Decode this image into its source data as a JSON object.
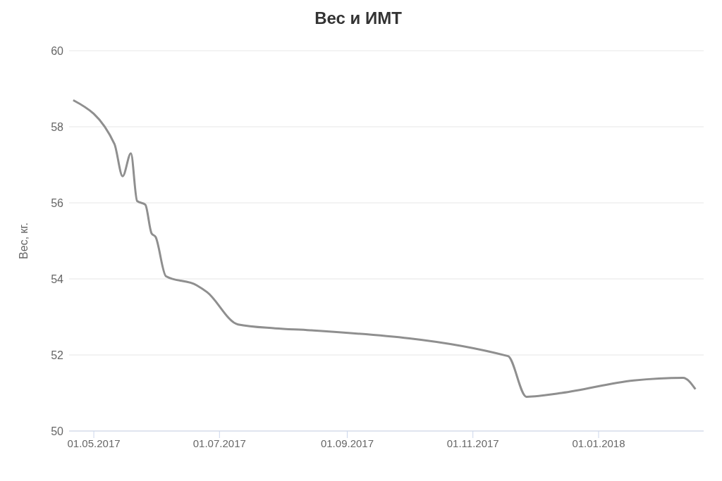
{
  "chart_data": {
    "type": "line",
    "title": "Вес и ИМТ",
    "ylabel": "Вес, кг.",
    "x": [
      "2017-04-21",
      "2017-05-11",
      "2017-05-15",
      "2017-05-19",
      "2017-05-22",
      "2017-05-26",
      "2017-05-29",
      "2017-05-31",
      "2017-06-05",
      "2017-06-20",
      "2017-06-25",
      "2017-07-10",
      "2017-07-28",
      "2017-08-14",
      "2017-11-18",
      "2017-11-27",
      "2017-12-14",
      "2018-01-18",
      "2018-02-11",
      "2018-02-17"
    ],
    "series": [
      {
        "color": "#8f8f8f",
        "values": [
          58.7,
          57.55,
          56.7,
          57.3,
          56.05,
          55.95,
          55.2,
          55.1,
          54.07,
          53.83,
          53.65,
          52.8,
          52.7,
          52.65,
          51.97,
          50.9,
          51.0,
          51.33,
          51.4,
          51.1
        ]
      }
    ],
    "xlim": [
      "2017-04-19",
      "2018-02-21"
    ],
    "xticks": [
      {
        "value": "2017-05-01",
        "label": "01.05.2017"
      },
      {
        "value": "2017-07-01",
        "label": "01.07.2017"
      },
      {
        "value": "2017-09-01",
        "label": "01.09.2017"
      },
      {
        "value": "2017-11-01",
        "label": "01.11.2017"
      },
      {
        "value": "2018-01-01",
        "label": "01.01.2018"
      }
    ],
    "ylim": [
      50,
      60
    ],
    "yticks": [
      50,
      52,
      54,
      56,
      58,
      60
    ],
    "grid": "y",
    "legend": false,
    "marker": "none",
    "line_style": "solid"
  }
}
